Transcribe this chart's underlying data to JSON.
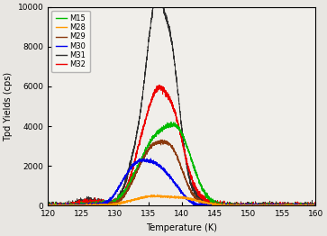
{
  "xlabel": "Temperature (K)",
  "ylabel": "Tpd Yields (cps)",
  "xlim": [
    120,
    160
  ],
  "ylim": [
    0,
    10000
  ],
  "yticks": [
    0,
    2000,
    4000,
    6000,
    8000,
    10000
  ],
  "xticks": [
    120,
    125,
    130,
    135,
    140,
    145,
    150,
    155,
    160
  ],
  "legend_entries": [
    "M15",
    "M28",
    "M29",
    "M30",
    "M31",
    "M32"
  ],
  "colors": {
    "M15": "#00bb00",
    "M28": "#ff9900",
    "M29": "#8B3A0F",
    "M30": "#0000ee",
    "M31": "#303030",
    "M32": "#ee0000"
  },
  "background_color": "#f0eeea",
  "fig_color": "#e8e6e2"
}
